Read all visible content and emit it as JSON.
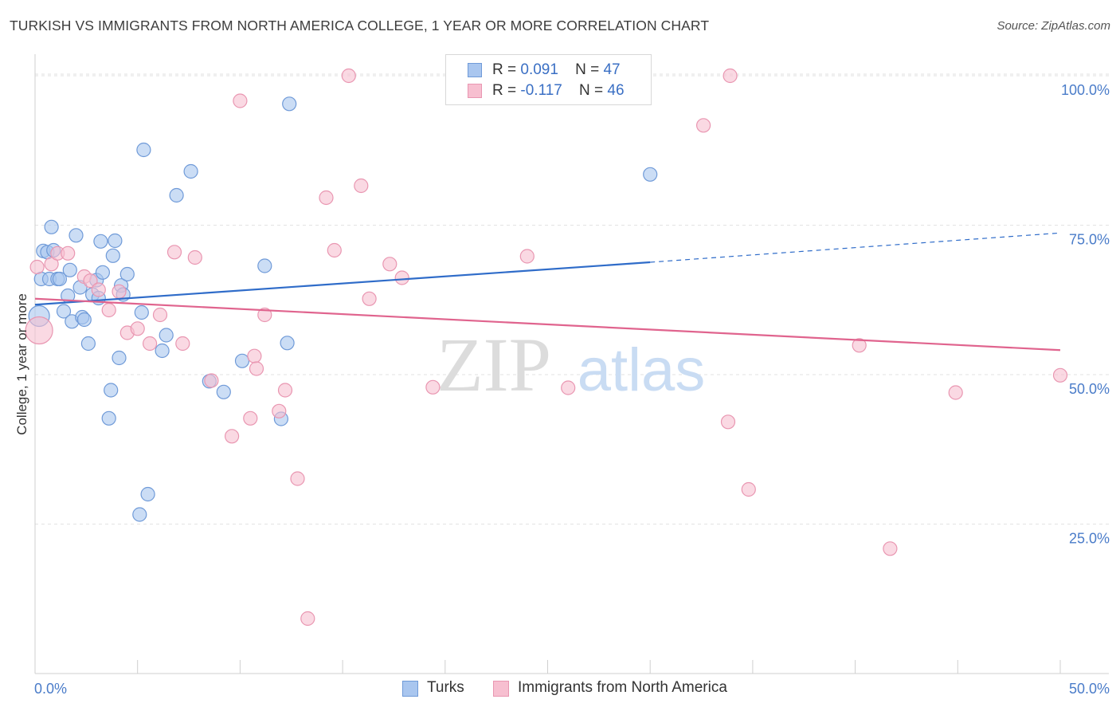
{
  "header": {
    "title": "TURKISH VS IMMIGRANTS FROM NORTH AMERICA COLLEGE, 1 YEAR OR MORE CORRELATION CHART",
    "source": "Source: ZipAtlas.com"
  },
  "watermark": {
    "zip": "ZIP",
    "atlas": "atlas"
  },
  "legend": {
    "rows": [
      {
        "r_label": "R =",
        "r_value": "0.091",
        "n_label": "N =",
        "n_value": "47",
        "color": "#a9c6ef",
        "stroke": "#6f9ad8"
      },
      {
        "r_label": "R =",
        "r_value": "-0.117",
        "n_label": "N =",
        "n_value": "46",
        "color": "#f7bfd0",
        "stroke": "#e996b1"
      }
    ]
  },
  "bottom_legend": {
    "items": [
      {
        "label": "Turks",
        "color": "#a9c6ef",
        "stroke": "#6f9ad8"
      },
      {
        "label": "Immigrants from North America",
        "color": "#f7bfd0",
        "stroke": "#e996b1"
      }
    ]
  },
  "chart_data": {
    "type": "scatter",
    "title": "TURKISH VS IMMIGRANTS FROM NORTH AMERICA COLLEGE, 1 YEAR OR MORE CORRELATION CHART",
    "xlabel": "",
    "ylabel": "College, 1 year or more",
    "xlim": [
      0,
      50
    ],
    "ylim": [
      0,
      102
    ],
    "x_ticks": [
      "0.0%",
      "50.0%"
    ],
    "y_ticks": [
      {
        "value": 25,
        "label": "25.0%"
      },
      {
        "value": 50,
        "label": "50.0%"
      },
      {
        "value": 75,
        "label": "75.0%"
      },
      {
        "value": 100,
        "label": "100.0%"
      }
    ],
    "grid": "horizontal dashed",
    "legend_position": "top-center",
    "series": [
      {
        "name": "Turks",
        "color": "#a9c6ef",
        "stroke": "#6f9ad8",
        "trend": {
          "x": [
            0,
            30
          ],
          "y": [
            61.7,
            68.8
          ],
          "dashed_to": [
            50,
            73.7
          ],
          "color": "#2f6cc9"
        },
        "points": [
          [
            0.2,
            59.8
          ],
          [
            0.3,
            66
          ],
          [
            0.4,
            70.7
          ],
          [
            0.6,
            70.5
          ],
          [
            0.7,
            66
          ],
          [
            0.8,
            74.7
          ],
          [
            0.9,
            70.8
          ],
          [
            1.1,
            66
          ],
          [
            1.2,
            66
          ],
          [
            1.4,
            60.6
          ],
          [
            1.6,
            63.2
          ],
          [
            1.7,
            67.5
          ],
          [
            1.8,
            58.9
          ],
          [
            2.0,
            73.3
          ],
          [
            2.2,
            64.6
          ],
          [
            2.3,
            59.6
          ],
          [
            2.4,
            59.2
          ],
          [
            2.6,
            55.2
          ],
          [
            2.8,
            63.4
          ],
          [
            3.0,
            65.8
          ],
          [
            3.1,
            62.8
          ],
          [
            3.2,
            72.3
          ],
          [
            3.3,
            67.1
          ],
          [
            3.6,
            42.7
          ],
          [
            3.7,
            47.4
          ],
          [
            3.8,
            69.9
          ],
          [
            3.9,
            72.4
          ],
          [
            4.1,
            52.8
          ],
          [
            4.2,
            64.9
          ],
          [
            4.3,
            63.4
          ],
          [
            4.5,
            66.8
          ],
          [
            5.1,
            26.6
          ],
          [
            5.2,
            60.4
          ],
          [
            5.3,
            87.6
          ],
          [
            5.5,
            30
          ],
          [
            6.2,
            54
          ],
          [
            6.4,
            56.6
          ],
          [
            6.9,
            80
          ],
          [
            7.6,
            84
          ],
          [
            8.5,
            48.9
          ],
          [
            9.2,
            47.1
          ],
          [
            10.1,
            52.3
          ],
          [
            11.2,
            68.2
          ],
          [
            12.0,
            42.6
          ],
          [
            12.3,
            55.3
          ],
          [
            12.4,
            95.3
          ],
          [
            30.0,
            83.5
          ]
        ]
      },
      {
        "name": "Immigrants from North America",
        "color": "#f7bfd0",
        "stroke": "#e996b1",
        "trend": {
          "x": [
            0,
            50
          ],
          "y": [
            62.7,
            54.1
          ],
          "color": "#e0648e"
        },
        "points": [
          [
            0.2,
            57.4
          ],
          [
            0.8,
            68.5
          ],
          [
            1.1,
            70.3
          ],
          [
            1.6,
            70.3
          ],
          [
            2.4,
            66.4
          ],
          [
            2.7,
            65.7
          ],
          [
            3.1,
            64.2
          ],
          [
            3.6,
            60.8
          ],
          [
            4.1,
            63.9
          ],
          [
            4.5,
            57
          ],
          [
            5.0,
            57.7
          ],
          [
            5.6,
            55.2
          ],
          [
            6.1,
            60
          ],
          [
            6.8,
            70.5
          ],
          [
            7.2,
            55.2
          ],
          [
            7.8,
            69.6
          ],
          [
            8.6,
            49
          ],
          [
            9.6,
            39.7
          ],
          [
            10.0,
            95.8
          ],
          [
            10.5,
            42.7
          ],
          [
            10.7,
            53.1
          ],
          [
            10.8,
            51
          ],
          [
            11.2,
            60
          ],
          [
            11.9,
            43.9
          ],
          [
            12.2,
            47.4
          ],
          [
            12.8,
            32.6
          ],
          [
            13.3,
            9.2
          ],
          [
            14.2,
            79.6
          ],
          [
            14.6,
            70.8
          ],
          [
            15.3,
            100
          ],
          [
            15.9,
            81.6
          ],
          [
            16.3,
            62.7
          ],
          [
            17.3,
            68.5
          ],
          [
            17.9,
            66.2
          ],
          [
            19.4,
            47.9
          ],
          [
            24.0,
            69.8
          ],
          [
            26.0,
            47.8
          ],
          [
            32.6,
            91.7
          ],
          [
            33.8,
            42.1
          ],
          [
            33.9,
            100
          ],
          [
            34.8,
            30.8
          ],
          [
            40.2,
            54.9
          ],
          [
            41.7,
            20.9
          ],
          [
            44.9,
            47
          ],
          [
            50.0,
            49.9
          ],
          [
            0.1,
            68.0
          ]
        ]
      }
    ]
  }
}
